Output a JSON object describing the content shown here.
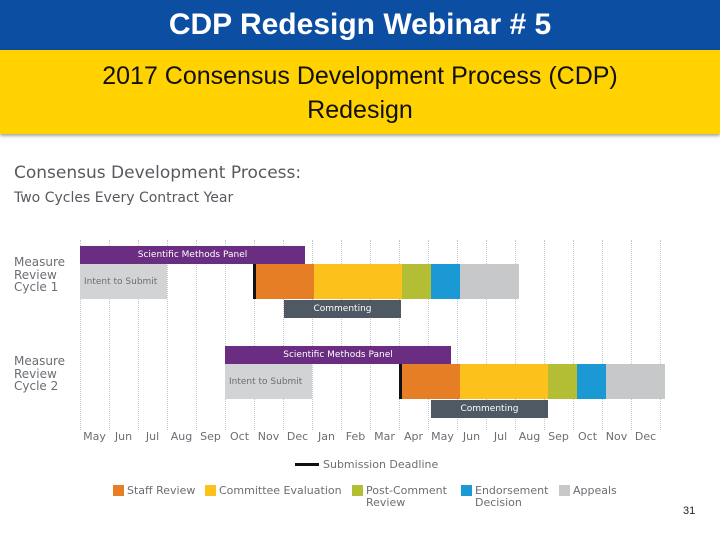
{
  "header": {
    "title": "CDP Redesign Webinar # 5",
    "subtitle_line1": "2017 Consensus Development Process (CDP)",
    "subtitle_line2": "Redesign"
  },
  "diagram": {
    "title": "Consensus Development Process:",
    "subtitle": "Two Cycles Every Contract Year",
    "cycle1": {
      "label_line1": "Measure",
      "label_line2": "Review",
      "label_line3": "Cycle 1",
      "scientific_methods_panel": "Scientific Methods Panel",
      "intent_to_submit": "Intent to Submit",
      "commenting": "Commenting"
    },
    "cycle2": {
      "label_line1": "Measure",
      "label_line2": "Review",
      "label_line3": "Cycle 2",
      "scientific_methods_panel": "Scientific Methods Panel",
      "intent_to_submit": "Intent to Submit",
      "commenting": "Commenting"
    },
    "months": [
      "May",
      "Jun",
      "Jul",
      "Aug",
      "Sep",
      "Oct",
      "Nov",
      "Dec",
      "Jan",
      "Feb",
      "Mar",
      "Apr",
      "May",
      "Jun",
      "Jul",
      "Aug",
      "Sep",
      "Oct",
      "Nov",
      "Dec"
    ]
  },
  "legend": {
    "submission_deadline": "Submission Deadline",
    "staff_review": "Staff Review",
    "committee_evaluation": "Committee Evaluation",
    "post_comment_line1": "Post-Comment",
    "post_comment_line2": "Review",
    "endorsement_line1": "Endorsement",
    "endorsement_line2": "Decision",
    "appeals": "Appeals"
  },
  "colors": {
    "title_bar": "#0b4ea2",
    "subtitle_bar": "#ffd200",
    "scientific_methods_panel": "#6b2d82",
    "intent_to_submit": "#d2d3d5",
    "staff_review": "#e57e25",
    "committee_evaluation": "#fcc21b",
    "post_comment_review": "#b4be34",
    "endorsement_decision": "#1a99d5",
    "appeals": "#c7c8ca",
    "commenting": "#4e5964"
  },
  "page_number": "31"
}
